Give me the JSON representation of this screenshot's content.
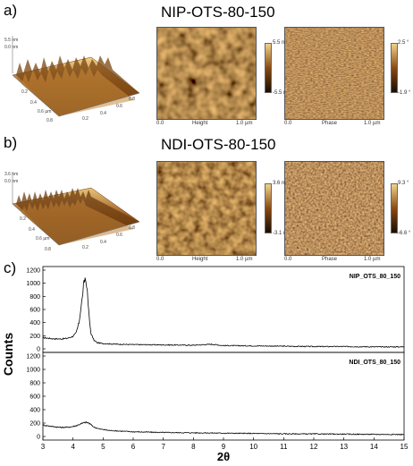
{
  "panels": {
    "a": {
      "letter": "a)",
      "title": "NIP-OTS-80-150",
      "surface_z_label": "5.5 nm",
      "surface_z_zero": "0.0 nm",
      "surface_ticks": [
        "0.2",
        "0.4",
        "0.6 µm",
        "0.8",
        "0.2",
        "0.4",
        "0.6",
        "0.8"
      ],
      "height": {
        "scale_top": "5.5 nm",
        "scale_bottom": "-5.5 nm",
        "axis_start": "0.0",
        "axis_label": "Height",
        "axis_end": "1.0 µm"
      },
      "phase": {
        "scale_top": "2.5 °",
        "scale_bottom": "-1.9 °",
        "axis_start": "0.0",
        "axis_label": "Phase",
        "axis_end": "1.0 µm"
      }
    },
    "b": {
      "letter": "b)",
      "title": "NDI-OTS-80-150",
      "surface_z_label": "3.6 nm",
      "surface_z_zero": "0.0 nm",
      "surface_ticks": [
        "0.2",
        "0.4",
        "0.6 µm",
        "0.8",
        "0.2",
        "0.4",
        "0.6",
        "0.8"
      ],
      "height": {
        "scale_top": "3.6 nm",
        "scale_bottom": "-3.1 nm",
        "axis_start": "0.0",
        "axis_label": "Height",
        "axis_end": "1.0 µm"
      },
      "phase": {
        "scale_top": "9.3 °",
        "scale_bottom": "-6.6 °",
        "axis_start": "0.0",
        "axis_label": "Phase",
        "axis_end": "1.0 µm"
      }
    },
    "c": {
      "letter": "c)"
    }
  },
  "colors": {
    "afm_dark": "#1a0d00",
    "afm_mid": "#8a4a12",
    "afm_bright": "#f2d28a",
    "trace": "#000000"
  },
  "chart_data": {
    "type": "line",
    "xlabel": "2θ",
    "ylabel": "Counts",
    "xlim": [
      3,
      15
    ],
    "x_ticks": [
      "3",
      "4",
      "5",
      "6",
      "7",
      "8",
      "9",
      "10",
      "11",
      "12",
      "13",
      "14",
      "15"
    ],
    "y_ticks": [
      "0",
      "200",
      "400",
      "600",
      "800",
      "1000",
      "1200"
    ],
    "ylim": [
      0,
      1200
    ],
    "series": [
      {
        "name": "NIP_OTS_80_150",
        "x": [
          3.0,
          3.3,
          3.6,
          3.8,
          4.0,
          4.1,
          4.2,
          4.3,
          4.35,
          4.4,
          4.45,
          4.5,
          4.55,
          4.6,
          4.7,
          4.8,
          5.0,
          5.5,
          6.0,
          7.0,
          8.0,
          8.6,
          9.0,
          10.0,
          11.0,
          12.0,
          13.0,
          14.0,
          15.0
        ],
        "y": [
          170,
          155,
          150,
          160,
          190,
          240,
          400,
          750,
          950,
          1080,
          1000,
          700,
          420,
          230,
          130,
          95,
          80,
          70,
          65,
          60,
          55,
          70,
          50,
          45,
          40,
          35,
          35,
          30,
          30
        ]
      },
      {
        "name": "NDI_OTS_80_150",
        "x": [
          3.0,
          3.3,
          3.6,
          3.9,
          4.1,
          4.3,
          4.4,
          4.5,
          4.6,
          4.7,
          4.9,
          5.2,
          5.6,
          6.0,
          7.0,
          8.0,
          9.0,
          10.0,
          11.0,
          12.0,
          13.0,
          14.0,
          15.0
        ],
        "y": [
          170,
          150,
          135,
          140,
          160,
          195,
          210,
          205,
          175,
          140,
          110,
          90,
          80,
          70,
          60,
          55,
          50,
          45,
          40,
          38,
          35,
          32,
          30
        ]
      }
    ]
  }
}
